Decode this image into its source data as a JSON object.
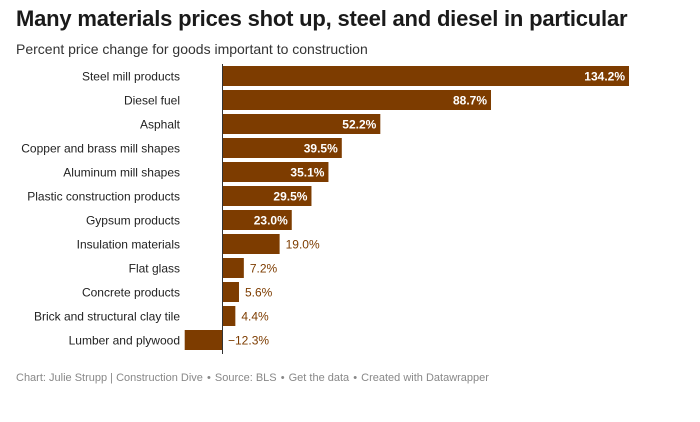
{
  "header": {
    "title": "Many materials prices shot up, steel and diesel in particular",
    "subtitle": "Percent price change for goods important to construction"
  },
  "footer": {
    "credit": "Chart: Julie Strupp | Construction Dive",
    "source": "Source: BLS",
    "get_data": "Get the data",
    "created": "Created with Datawrapper",
    "separator": "•"
  },
  "colors": {
    "bar": "#7d3c00",
    "label_inside": "#ffffff",
    "label_outside": "#7d3c00",
    "axis_line": "#333333"
  },
  "chart_data": {
    "type": "bar",
    "orientation": "horizontal",
    "title": "Many materials prices shot up, steel and diesel in particular",
    "subtitle": "Percent price change for goods important to construction",
    "unit": "%",
    "categories": [
      "Steel mill products",
      "Diesel fuel",
      "Asphalt",
      "Copper and brass mill shapes",
      "Aluminum mill shapes",
      "Plastic construction products",
      "Gypsum products",
      "Insulation materials",
      "Flat glass",
      "Concrete products",
      "Brick and structural clay tile",
      "Lumber and plywood"
    ],
    "values": [
      134.2,
      88.7,
      52.2,
      39.5,
      35.1,
      29.5,
      23.0,
      19.0,
      7.2,
      5.6,
      4.4,
      -12.3
    ],
    "value_labels": [
      "134.2%",
      "88.7%",
      "52.2%",
      "39.5%",
      "35.1%",
      "29.5%",
      "23.0%",
      "19.0%",
      "7.2%",
      "5.6%",
      "4.4%",
      "−12.3%"
    ],
    "xlim": [
      -12.3,
      134.2
    ],
    "grid": false,
    "legend": "none"
  }
}
